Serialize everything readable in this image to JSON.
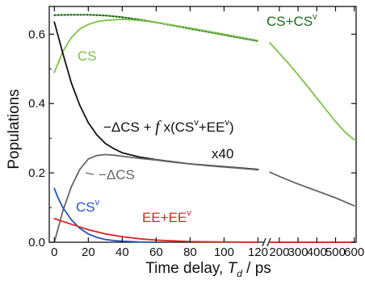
{
  "chart_data": {
    "type": "line",
    "xlabel": "Time delay, ",
    "xlabel_var": "T",
    "xlabel_sub": "d",
    "xlabel_unit": " / ps",
    "ylabel": "Populations",
    "ylim": [
      0,
      0.68
    ],
    "xlim_left": [
      -3,
      125
    ],
    "xlim_right": [
      140,
      610
    ],
    "x_ticks_left": [
      0,
      20,
      40,
      60,
      80,
      100,
      120
    ],
    "x_ticks_right": [
      200,
      300,
      400,
      500,
      600
    ],
    "y_ticks": [
      0.0,
      0.2,
      0.4,
      0.6
    ],
    "axis_break": true,
    "series": [
      {
        "name": "CS+CSᵛ",
        "color": "#1a6b1a",
        "style": "dotted",
        "x": [
          0,
          10,
          20,
          30,
          40,
          50,
          60,
          70,
          80,
          90,
          100,
          110,
          120
        ],
        "y": [
          0.655,
          0.656,
          0.656,
          0.654,
          0.649,
          0.642,
          0.634,
          0.625,
          0.616,
          0.607,
          0.598,
          0.589,
          0.58
        ]
      },
      {
        "name": "CS",
        "color": "#7cc246",
        "x": [
          0,
          5,
          10,
          15,
          20,
          25,
          30,
          40,
          50,
          60,
          70,
          80,
          90,
          100,
          110,
          120,
          150,
          200,
          250,
          300,
          350,
          400,
          450,
          500,
          550,
          600
        ],
        "y": [
          0.49,
          0.55,
          0.59,
          0.615,
          0.628,
          0.636,
          0.64,
          0.643,
          0.64,
          0.634,
          0.626,
          0.618,
          0.609,
          0.6,
          0.591,
          0.582,
          0.575,
          0.545,
          0.515,
          0.483,
          0.45,
          0.416,
          0.382,
          0.348,
          0.318,
          0.295
        ]
      },
      {
        "name": "−ΔCS + f x(CSᵛ+EEᵛ)",
        "color": "#111111",
        "x": [
          0,
          5,
          10,
          15,
          20,
          25,
          30,
          35,
          40,
          50,
          60,
          70,
          80,
          100,
          120
        ],
        "y": [
          0.635,
          0.545,
          0.46,
          0.395,
          0.345,
          0.31,
          0.285,
          0.27,
          0.258,
          0.246,
          0.238,
          0.232,
          0.226,
          0.218,
          0.21
        ]
      },
      {
        "name": "−ΔCS",
        "color": "#666666",
        "x": [
          0,
          5,
          10,
          15,
          20,
          25,
          30,
          35,
          40,
          50,
          60,
          70,
          80,
          90,
          100,
          110,
          120,
          150,
          200,
          300,
          400,
          500,
          600
        ],
        "y": [
          0.0,
          0.09,
          0.16,
          0.21,
          0.24,
          0.25,
          0.253,
          0.251,
          0.248,
          0.242,
          0.237,
          0.231,
          0.226,
          0.221,
          0.217,
          0.213,
          0.209,
          0.202,
          0.19,
          0.168,
          0.148,
          0.128,
          0.105
        ]
      },
      {
        "name": "CSᵛ",
        "color": "#2255bb",
        "x": [
          0,
          2,
          5,
          10,
          15,
          20,
          25,
          30,
          35,
          40,
          50,
          60
        ],
        "y": [
          0.155,
          0.13,
          0.1,
          0.065,
          0.04,
          0.024,
          0.014,
          0.008,
          0.005,
          0.003,
          0.001,
          0.0
        ]
      },
      {
        "name": "EE+EEᵛ",
        "color": "#dd2222",
        "x": [
          0,
          10,
          20,
          30,
          40,
          50,
          60,
          70,
          80,
          90,
          100,
          120,
          150,
          200,
          300,
          400,
          500,
          600
        ],
        "y": [
          0.068,
          0.052,
          0.036,
          0.024,
          0.016,
          0.01,
          0.006,
          0.004,
          0.002,
          0.0015,
          0.001,
          0.0,
          0.0,
          0.0,
          0.0,
          0.0,
          0.0,
          0.0
        ]
      }
    ],
    "annotations": [
      {
        "id": "cs_cs_v",
        "text": "CS+CS",
        "sup": "v",
        "color": "#1a6b1a"
      },
      {
        "id": "cs",
        "text": "CS",
        "sup": "",
        "color": "#7cc246"
      },
      {
        "id": "sum",
        "text": "−ΔCS + ",
        "italic": "f",
        "rest": " x(CS",
        "sup1": "v",
        "rest2": "+EE",
        "sup2": "v",
        "tail": ")",
        "color": "#111111"
      },
      {
        "id": "x40",
        "text": "x40",
        "color": "#111111"
      },
      {
        "id": "dcs",
        "text": "−ΔCS",
        "color": "#666666"
      },
      {
        "id": "cs_v",
        "text": "CS",
        "sup": "v",
        "color": "#2255bb"
      },
      {
        "id": "ee",
        "text": "EE+EE",
        "sup": "v",
        "color": "#dd2222"
      }
    ]
  }
}
